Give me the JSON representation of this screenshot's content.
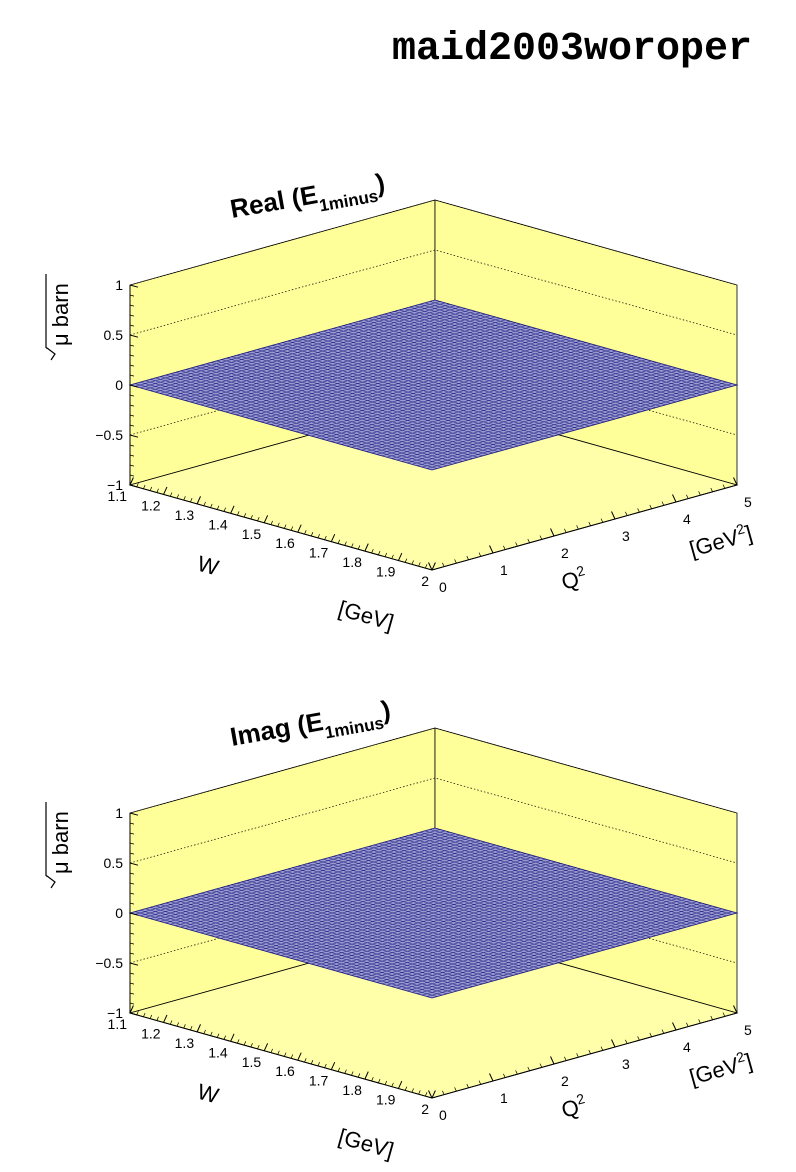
{
  "page": {
    "title": "maid2003woroper"
  },
  "colors": {
    "wall": "#ffff99",
    "floor": "#ffffaa",
    "surface": "#9a9ad0",
    "mesh": "#1a1a80",
    "axis": "#000000"
  },
  "chart_data": [
    {
      "type": "surface",
      "title": {
        "prefix": "Real (E",
        "subscript": "1minus",
        "suffix": ")"
      },
      "xlabel": {
        "name": "W",
        "unit": "[GeV]"
      },
      "ylabel": {
        "name": "Q",
        "sup": "2",
        "unit_prefix": "[GeV",
        "unit_sup": "2",
        "unit_suffix": "]"
      },
      "zlabel": "μ barn",
      "xlim": [
        1.1,
        2
      ],
      "ylim": [
        0,
        5
      ],
      "zlim": [
        -1,
        1
      ],
      "x_ticks": [
        "1.1",
        "1.2",
        "1.3",
        "1.4",
        "1.5",
        "1.6",
        "1.7",
        "1.8",
        "1.9",
        "2"
      ],
      "y_ticks": [
        "0",
        "1",
        "2",
        "3",
        "4",
        "5"
      ],
      "z_ticks": [
        "−1",
        "−0.5",
        "0",
        "0.5",
        "1"
      ],
      "grid": true,
      "surface_value": 0
    },
    {
      "type": "surface",
      "title": {
        "prefix": "Imag (E",
        "subscript": "1minus",
        "suffix": ")"
      },
      "xlabel": {
        "name": "W",
        "unit": "[GeV]"
      },
      "ylabel": {
        "name": "Q",
        "sup": "2",
        "unit_prefix": "[GeV",
        "unit_sup": "2",
        "unit_suffix": "]"
      },
      "zlabel": "μ barn",
      "xlim": [
        1.1,
        2
      ],
      "ylim": [
        0,
        5
      ],
      "zlim": [
        -1,
        1
      ],
      "x_ticks": [
        "1.1",
        "1.2",
        "1.3",
        "1.4",
        "1.5",
        "1.6",
        "1.7",
        "1.8",
        "1.9",
        "2"
      ],
      "y_ticks": [
        "0",
        "1",
        "2",
        "3",
        "4",
        "5"
      ],
      "z_ticks": [
        "−1",
        "−0.5",
        "0",
        "0.5",
        "1"
      ],
      "grid": true,
      "surface_value": 0
    }
  ]
}
